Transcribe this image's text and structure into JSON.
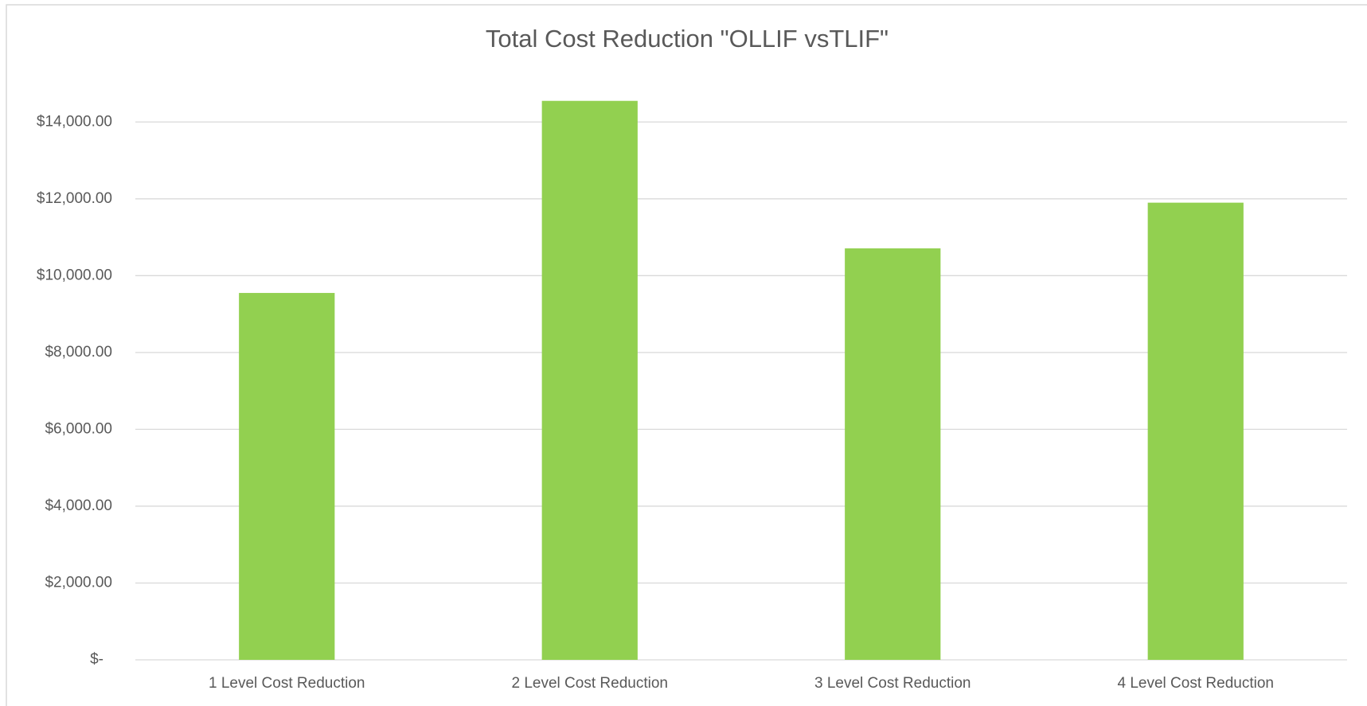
{
  "chart_data": {
    "type": "bar",
    "title": "Total Cost Reduction \"OLLIF vsTLIF\"",
    "categories": [
      "1 Level Cost Reduction",
      "2 Level Cost Reduction",
      "3 Level Cost Reduction",
      "4 Level Cost Reduction"
    ],
    "values": [
      9550,
      14550,
      10710,
      11900
    ],
    "color": "#92d050",
    "ylim": [
      0,
      15000
    ],
    "yticks": [
      {
        "value": 0,
        "label": "$-"
      },
      {
        "value": 2000,
        "label": "$2,000.00"
      },
      {
        "value": 4000,
        "label": "$4,000.00"
      },
      {
        "value": 6000,
        "label": "$6,000.00"
      },
      {
        "value": 8000,
        "label": "$8,000.00"
      },
      {
        "value": 10000,
        "label": "$10,000.00"
      },
      {
        "value": 12000,
        "label": "$12,000.00"
      },
      {
        "value": 14000,
        "label": "$14,000.00"
      }
    ],
    "grid": true
  }
}
